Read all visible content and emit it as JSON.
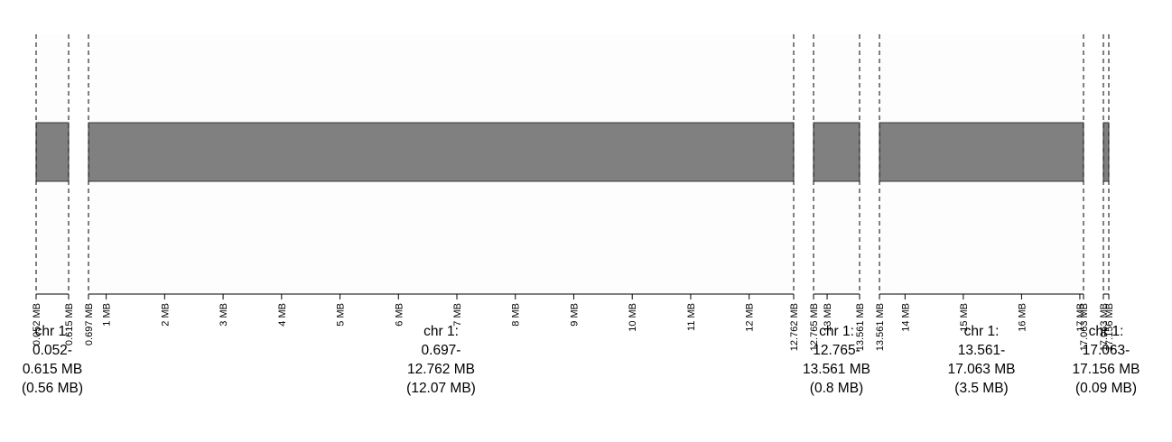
{
  "chart_data": {
    "type": "bar",
    "title": "",
    "xlabel": "",
    "ylabel": "",
    "grid": false,
    "legend": "none",
    "colors": {
      "segment_fill": "#808080",
      "segment_stroke": "#333333",
      "panel_fill": "#fdfdfd",
      "boundary_line": "#000000"
    },
    "segments": [
      {
        "chrom": "chr 1",
        "start": 0.052,
        "end": 0.615,
        "start_label": "0.052 MB",
        "end_label": "0.615 MB",
        "ticks": [],
        "label_lines": [
          "chr 1:",
          "0.052-",
          "0.615 MB",
          "(0.56 MB)"
        ]
      },
      {
        "chrom": "chr 1",
        "start": 0.697,
        "end": 12.762,
        "start_label": "0.697 MB",
        "end_label": "12.762 MB",
        "ticks": [
          {
            "value": 1,
            "label": "1 MB"
          },
          {
            "value": 2,
            "label": "2 MB"
          },
          {
            "value": 3,
            "label": "3 MB"
          },
          {
            "value": 4,
            "label": "4 MB"
          },
          {
            "value": 5,
            "label": "5 MB"
          },
          {
            "value": 6,
            "label": "6 MB"
          },
          {
            "value": 7,
            "label": "7 MB"
          },
          {
            "value": 8,
            "label": "8 MB"
          },
          {
            "value": 9,
            "label": "9 MB"
          },
          {
            "value": 10,
            "label": "10 MB"
          },
          {
            "value": 11,
            "label": "11 MB"
          },
          {
            "value": 12,
            "label": "12 MB"
          }
        ],
        "label_lines": [
          "chr 1:",
          "0.697-",
          "12.762 MB",
          "(12.07 MB)"
        ]
      },
      {
        "chrom": "chr 1",
        "start": 12.765,
        "end": 13.561,
        "start_label": "12.765 MB",
        "end_label": "13.561 MB",
        "ticks": [
          {
            "value": 13,
            "label": "13 MB"
          }
        ],
        "label_lines": [
          "chr 1:",
          "12.765-",
          "13.561 MB",
          "(0.8 MB)"
        ]
      },
      {
        "chrom": "chr 1",
        "start": 13.561,
        "end": 17.063,
        "start_label": "13.561 MB",
        "end_label": "17.063 MB",
        "ticks": [
          {
            "value": 14,
            "label": "14 MB"
          },
          {
            "value": 15,
            "label": "15 MB"
          },
          {
            "value": 16,
            "label": "16 MB"
          },
          {
            "value": 17,
            "label": "17 MB"
          }
        ],
        "label_lines": [
          "chr 1:",
          "13.561-",
          "17.063 MB",
          "(3.5 MB)"
        ]
      },
      {
        "chrom": "chr 1",
        "start": 17.063,
        "end": 17.156,
        "start_label": "17.063 MB",
        "end_label": "17.156 MB",
        "ticks": [],
        "label_lines": [
          "chr 1:",
          "17.063-",
          "17.156 MB",
          "(0.09 MB)"
        ]
      }
    ]
  }
}
